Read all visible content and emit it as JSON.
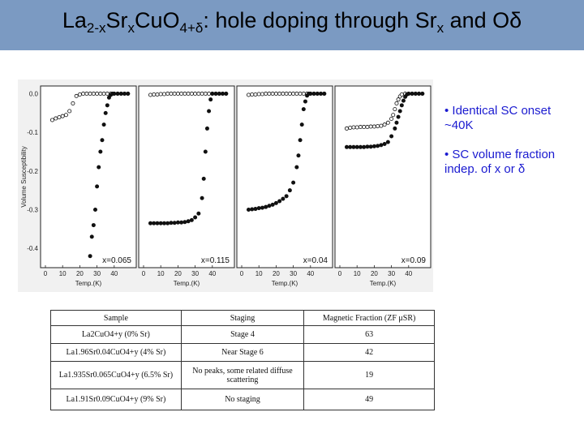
{
  "title": {
    "parts": [
      "La",
      "2-x",
      "Sr",
      "x",
      "Cu",
      "O",
      "4+δ",
      ": hole doping through Sr",
      "x",
      " and O",
      "δ"
    ]
  },
  "colors": {
    "title_bar": "#7b9ac2",
    "bullet_text": "#1a1ad0"
  },
  "bullets": [
    "• Identical SC onset ~40K",
    "• SC volume fraction indep. of x or δ"
  ],
  "chart_data": {
    "type": "scatter",
    "ylabel": "Volume Susceptibility",
    "xlabel": "Temp.(K)",
    "ylim": [
      -0.45,
      0.02
    ],
    "yticks": [
      "0.0",
      "-0.1",
      "-0.2",
      "-0.3",
      "-0.4"
    ],
    "xticks": [
      "0",
      "10",
      "20",
      "30",
      "40"
    ],
    "panels": [
      {
        "label": "x=0.065",
        "series": [
          {
            "marker": "open",
            "x": [
              4,
              6,
              8,
              10,
              12,
              14,
              16,
              18,
              20,
              22,
              24,
              26,
              28,
              30,
              32,
              34,
              36,
              38,
              40,
              42,
              44,
              46,
              48
            ],
            "y": [
              -0.068,
              -0.064,
              -0.061,
              -0.058,
              -0.055,
              -0.045,
              -0.025,
              -0.006,
              -0.002,
              0.0,
              0.0,
              0.0,
              0.0,
              0.0,
              0.0,
              0.0,
              0.0,
              0.0,
              0.0,
              0.0,
              0.0,
              0.0,
              0.0
            ]
          },
          {
            "marker": "filled",
            "x": [
              26,
              27,
              28,
              29,
              30,
              31,
              32,
              33,
              34,
              35,
              36,
              37,
              38,
              39,
              40,
              42,
              44,
              46,
              48
            ],
            "y": [
              -0.42,
              -0.37,
              -0.34,
              -0.3,
              -0.24,
              -0.19,
              -0.15,
              -0.12,
              -0.08,
              -0.05,
              -0.03,
              -0.01,
              -0.003,
              0.0,
              0.0,
              0.0,
              0.0,
              0.0,
              0.0
            ]
          }
        ]
      },
      {
        "label": "x=0.115",
        "series": [
          {
            "marker": "open",
            "x": [
              4,
              6,
              8,
              10,
              12,
              14,
              16,
              18,
              20,
              22,
              24,
              26,
              28,
              30,
              32,
              34,
              36,
              38,
              40,
              42,
              44,
              46,
              48
            ],
            "y": [
              -0.003,
              -0.002,
              -0.002,
              -0.001,
              -0.001,
              0.0,
              0.0,
              0.0,
              0.0,
              0.0,
              0.0,
              0.0,
              0.0,
              0.0,
              0.0,
              0.0,
              0.0,
              0.0,
              0.0,
              0.0,
              0.0,
              0.0,
              0.0
            ]
          },
          {
            "marker": "filled",
            "x": [
              4,
              6,
              8,
              10,
              12,
              14,
              16,
              18,
              20,
              22,
              24,
              26,
              28,
              30,
              32,
              34,
              35,
              36,
              37,
              38,
              39,
              40,
              42,
              44,
              46,
              48
            ],
            "y": [
              -0.335,
              -0.335,
              -0.335,
              -0.335,
              -0.335,
              -0.335,
              -0.334,
              -0.334,
              -0.333,
              -0.333,
              -0.332,
              -0.33,
              -0.327,
              -0.32,
              -0.31,
              -0.27,
              -0.22,
              -0.15,
              -0.09,
              -0.045,
              -0.015,
              0.0,
              0.0,
              0.0,
              0.0,
              0.0
            ]
          }
        ]
      },
      {
        "label": "x=0.04",
        "series": [
          {
            "marker": "open",
            "x": [
              4,
              6,
              8,
              10,
              12,
              14,
              16,
              18,
              20,
              22,
              24,
              26,
              28,
              30,
              32,
              34,
              36,
              38,
              40,
              42,
              44,
              46,
              48
            ],
            "y": [
              -0.003,
              -0.002,
              -0.002,
              -0.001,
              -0.001,
              0.0,
              0.0,
              0.0,
              0.0,
              0.0,
              0.0,
              0.0,
              0.0,
              0.0,
              0.0,
              0.0,
              0.0,
              0.0,
              0.0,
              0.0,
              0.0,
              0.0,
              0.0
            ]
          },
          {
            "marker": "filled",
            "x": [
              4,
              6,
              8,
              10,
              12,
              14,
              16,
              18,
              20,
              22,
              24,
              26,
              28,
              30,
              32,
              33,
              34,
              35,
              36,
              37,
              38,
              39,
              40,
              42,
              44,
              46,
              48
            ],
            "y": [
              -0.3,
              -0.299,
              -0.298,
              -0.296,
              -0.295,
              -0.293,
              -0.29,
              -0.287,
              -0.283,
              -0.278,
              -0.272,
              -0.265,
              -0.25,
              -0.23,
              -0.19,
              -0.16,
              -0.12,
              -0.08,
              -0.04,
              -0.02,
              -0.005,
              0.0,
              0.0,
              0.0,
              0.0,
              0.0,
              0.0
            ]
          }
        ]
      },
      {
        "label": "x=0.09",
        "series": [
          {
            "marker": "open",
            "x": [
              4,
              6,
              8,
              10,
              12,
              14,
              16,
              18,
              20,
              22,
              24,
              26,
              28,
              30,
              31,
              32,
              33,
              34,
              35,
              36,
              38,
              40,
              42,
              44,
              46,
              48
            ],
            "y": [
              -0.09,
              -0.088,
              -0.087,
              -0.087,
              -0.086,
              -0.086,
              -0.086,
              -0.085,
              -0.085,
              -0.084,
              -0.083,
              -0.08,
              -0.075,
              -0.065,
              -0.055,
              -0.04,
              -0.025,
              -0.015,
              -0.007,
              -0.002,
              0.0,
              0.0,
              0.0,
              0.0,
              0.0,
              0.0
            ]
          },
          {
            "marker": "filled",
            "x": [
              4,
              6,
              8,
              10,
              12,
              14,
              16,
              18,
              20,
              22,
              24,
              26,
              28,
              30,
              32,
              33,
              34,
              35,
              36,
              37,
              38,
              39,
              40,
              42,
              44,
              46,
              48
            ],
            "y": [
              -0.138,
              -0.138,
              -0.138,
              -0.138,
              -0.138,
              -0.138,
              -0.137,
              -0.137,
              -0.136,
              -0.135,
              -0.133,
              -0.13,
              -0.125,
              -0.11,
              -0.09,
              -0.075,
              -0.06,
              -0.045,
              -0.03,
              -0.018,
              -0.008,
              -0.002,
              0.0,
              0.0,
              0.0,
              0.0,
              0.0
            ]
          }
        ]
      }
    ]
  },
  "table": {
    "headers": [
      "Sample",
      "Staging",
      "Magnetic Fraction (ZF μSR)"
    ],
    "rows": [
      {
        "sample": "La2CuO4+y (0% Sr)",
        "staging": "Stage 4",
        "fraction": "63"
      },
      {
        "sample": "La1.96Sr0.04CuO4+y (4% Sr)",
        "staging": "Near Stage 6",
        "fraction": "42"
      },
      {
        "sample": "La1.935Sr0.065CuO4+y (6.5% Sr)",
        "staging": "No peaks, some related diffuse scattering",
        "fraction": "19"
      },
      {
        "sample": "La1.91Sr0.09CuO4+y (9% Sr)",
        "staging": "No staging",
        "fraction": "49"
      }
    ]
  }
}
